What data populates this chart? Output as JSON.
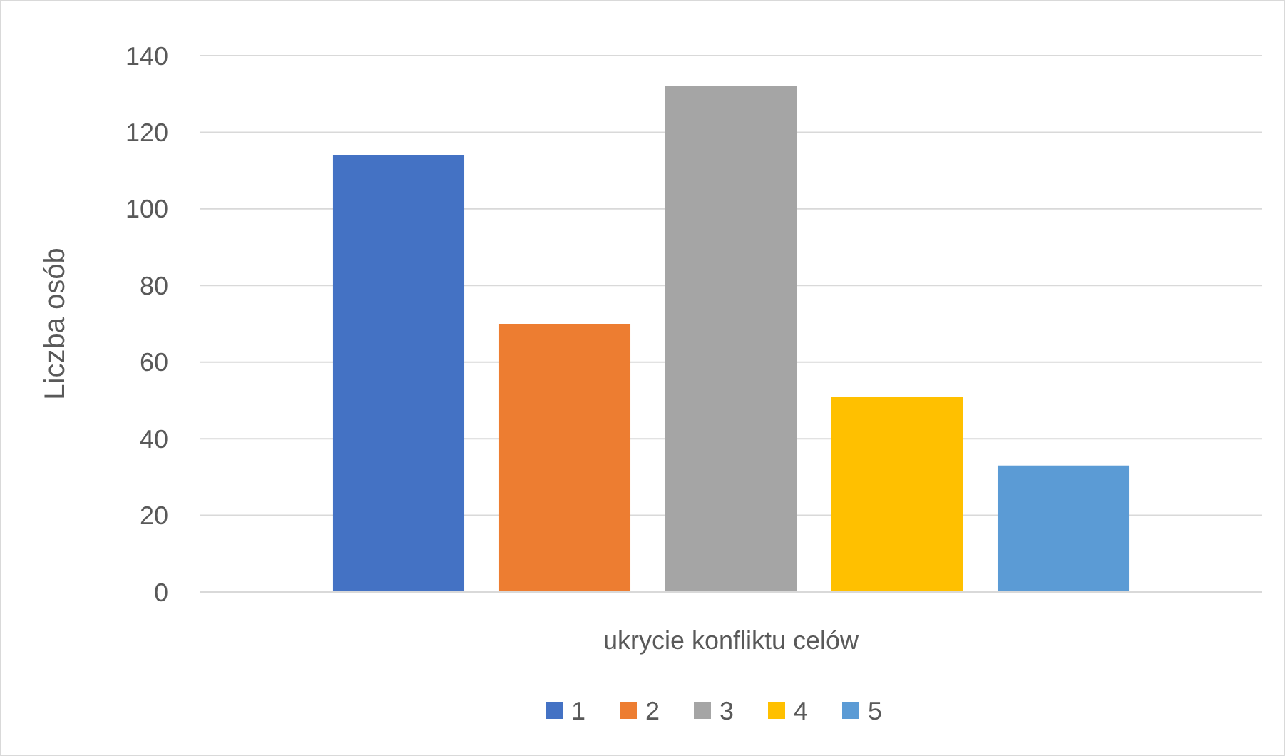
{
  "chart_data": {
    "type": "bar",
    "ylabel": "Liczba osób",
    "categories": [
      "ukrycie konfliktu celów"
    ],
    "series": [
      {
        "name": "1",
        "color": "#4472c4",
        "values": [
          114
        ]
      },
      {
        "name": "2",
        "color": "#ed7d31",
        "values": [
          70
        ]
      },
      {
        "name": "3",
        "color": "#a5a5a5",
        "values": [
          132
        ]
      },
      {
        "name": "4",
        "color": "#ffc000",
        "values": [
          51
        ]
      },
      {
        "name": "5",
        "color": "#5b9bd5",
        "values": [
          33
        ]
      }
    ],
    "ylim": [
      0,
      140
    ],
    "yticks": [
      0,
      20,
      40,
      60,
      80,
      100,
      120,
      140
    ],
    "grid": "y",
    "legend": "bottom"
  }
}
